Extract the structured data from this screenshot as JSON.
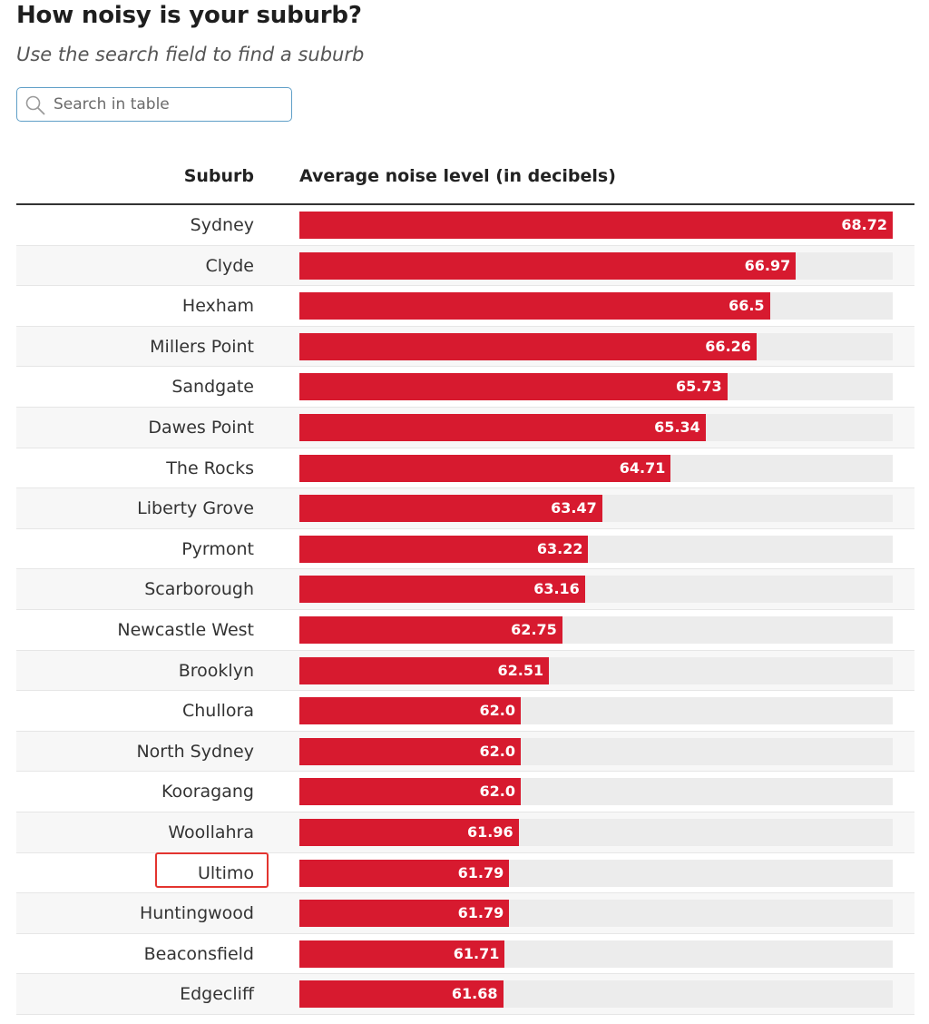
{
  "header": {
    "title": "How noisy is your suburb?",
    "subtitle": "Use the search field to find a suburb"
  },
  "search": {
    "placeholder": "Search in table",
    "value": "",
    "icon": "search-icon"
  },
  "colors": {
    "bar": "#d71a2f",
    "track": "#ececec",
    "search_border": "#5f9fc7",
    "highlight": "#e3342f"
  },
  "table": {
    "columns": [
      "Suburb",
      "Average noise level (in decibels)"
    ],
    "max_value": 68.72,
    "highlighted_suburb": "Ultimo",
    "rows": [
      {
        "suburb": "Sydney",
        "value": 68.72,
        "label": "68.72"
      },
      {
        "suburb": "Clyde",
        "value": 66.97,
        "label": "66.97"
      },
      {
        "suburb": "Hexham",
        "value": 66.5,
        "label": "66.5"
      },
      {
        "suburb": "Millers Point",
        "value": 66.26,
        "label": "66.26"
      },
      {
        "suburb": "Sandgate",
        "value": 65.73,
        "label": "65.73"
      },
      {
        "suburb": "Dawes Point",
        "value": 65.34,
        "label": "65.34"
      },
      {
        "suburb": "The Rocks",
        "value": 64.71,
        "label": "64.71"
      },
      {
        "suburb": "Liberty Grove",
        "value": 63.47,
        "label": "63.47"
      },
      {
        "suburb": "Pyrmont",
        "value": 63.22,
        "label": "63.22"
      },
      {
        "suburb": "Scarborough",
        "value": 63.16,
        "label": "63.16"
      },
      {
        "suburb": "Newcastle West",
        "value": 62.75,
        "label": "62.75"
      },
      {
        "suburb": "Brooklyn",
        "value": 62.51,
        "label": "62.51"
      },
      {
        "suburb": "Chullora",
        "value": 62.0,
        "label": "62.0"
      },
      {
        "suburb": "North Sydney",
        "value": 62.0,
        "label": "62.0"
      },
      {
        "suburb": "Kooragang",
        "value": 62.0,
        "label": "62.0"
      },
      {
        "suburb": "Woollahra",
        "value": 61.96,
        "label": "61.96"
      },
      {
        "suburb": "Ultimo",
        "value": 61.79,
        "label": "61.79"
      },
      {
        "suburb": "Huntingwood",
        "value": 61.79,
        "label": "61.79"
      },
      {
        "suburb": "Beaconsfield",
        "value": 61.71,
        "label": "61.71"
      },
      {
        "suburb": "Edgecliff",
        "value": 61.68,
        "label": "61.68"
      }
    ]
  }
}
